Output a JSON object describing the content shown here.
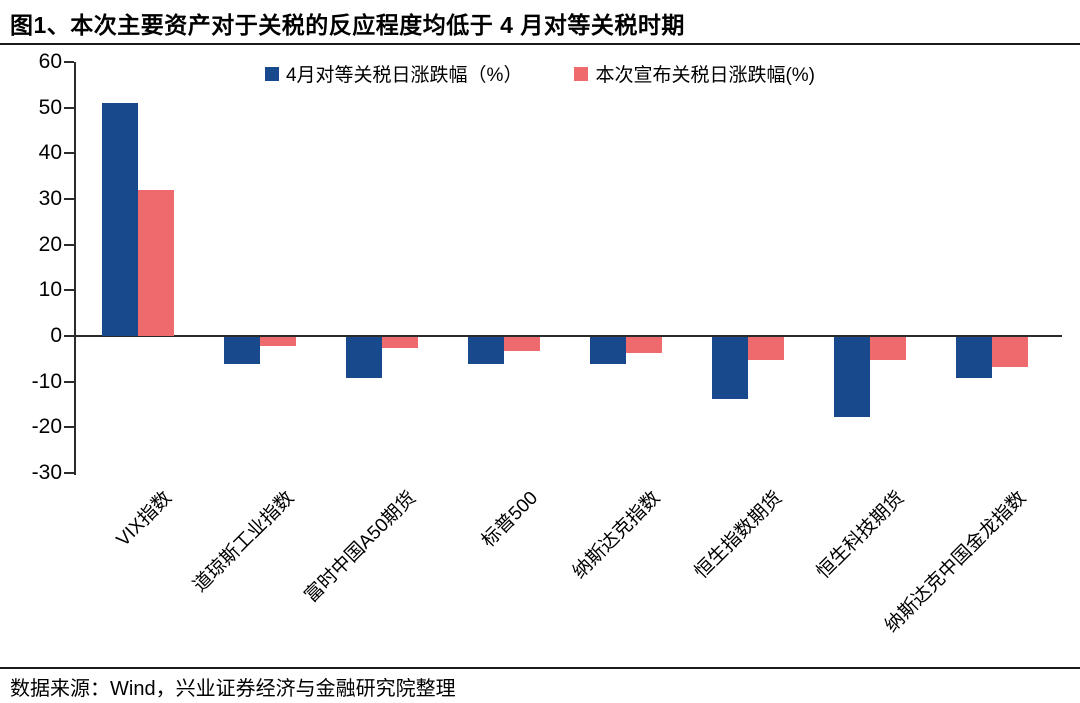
{
  "header": {
    "title": "图1、本次主要资产对于关税的反应程度均低于 4 月对等关税时期"
  },
  "footer": {
    "source": "数据来源：Wind，兴业证券经济与金融研究院整理"
  },
  "chart_data": {
    "type": "bar",
    "title": "本次主要资产对于关税的反应程度均低于4月对等关税时期",
    "categories": [
      "VIX指数",
      "道琼斯工业指数",
      "富时中国A50期货",
      "标普500",
      "纳斯达克指数",
      "恒生指数期货",
      "恒生科技期货",
      "纳斯达克中国金龙指数"
    ],
    "series": [
      {
        "name": "4月对等关税日涨跌幅（%）",
        "color": "#17498C",
        "values": [
          51,
          -6,
          -9,
          -6,
          -6,
          -13.5,
          -17.5,
          -9
        ]
      },
      {
        "name": "本次宣布关税日涨跌幅(%)",
        "color": "#EF6A6D",
        "values": [
          32,
          -2,
          -2.5,
          -3,
          -3.5,
          -5,
          -5,
          -6.5
        ]
      }
    ],
    "xlabel": "",
    "ylabel": "",
    "ylim": [
      -30,
      60
    ],
    "yticks": [
      60,
      50,
      40,
      30,
      20,
      10,
      0,
      -10,
      -20,
      -30
    ],
    "legend_position": "top",
    "grid": false,
    "axis_color": "#2b2b2b"
  }
}
